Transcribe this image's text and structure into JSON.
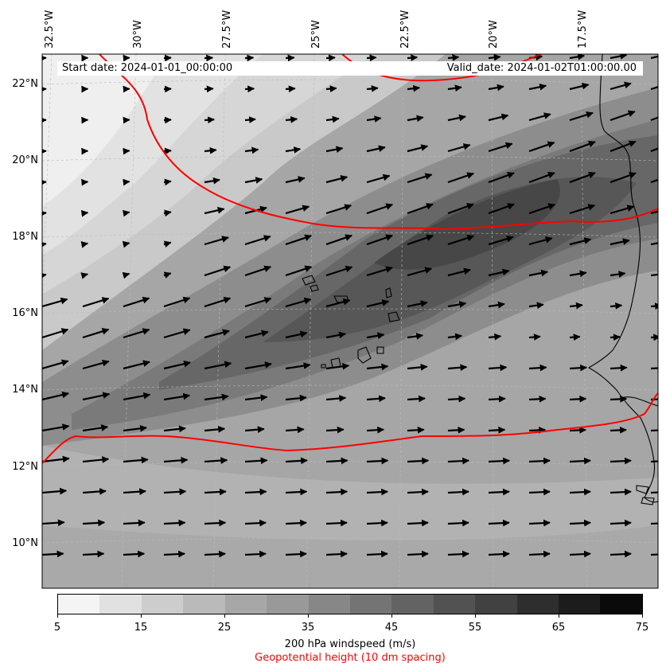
{
  "header": {
    "start_date": "Start date: 2024-01-01_00:00:00",
    "valid_date": "Valid_date: 2024-01-02T01:00:00.00"
  },
  "lon_labels": [
    "32.5°W",
    "30°W",
    "27.5°W",
    "25°W",
    "22.5°W",
    "20°W",
    "17.5°W"
  ],
  "lat_labels": [
    "22°N",
    "20°N",
    "18°N",
    "16°N",
    "14°N",
    "12°N",
    "10°N"
  ],
  "colorbar": {
    "ticks": [
      "5",
      "15",
      "25",
      "35",
      "45",
      "55",
      "65",
      "75"
    ],
    "label": "200 hPa windspeed (m/s)",
    "sublabel": "Geopotential height (10 dm spacing)",
    "colors": [
      "#f4f4f4",
      "#e1e1e1",
      "#cdcdcd",
      "#bababa",
      "#a7a7a7",
      "#999999",
      "#878787",
      "#747474",
      "#636363",
      "#525252",
      "#414141",
      "#2e2e2e",
      "#1c1c1c",
      "#0a0a0a"
    ]
  },
  "colors": {
    "contour": "#ff0000",
    "coast": "#000000",
    "sublabel": "#ff0000"
  }
}
